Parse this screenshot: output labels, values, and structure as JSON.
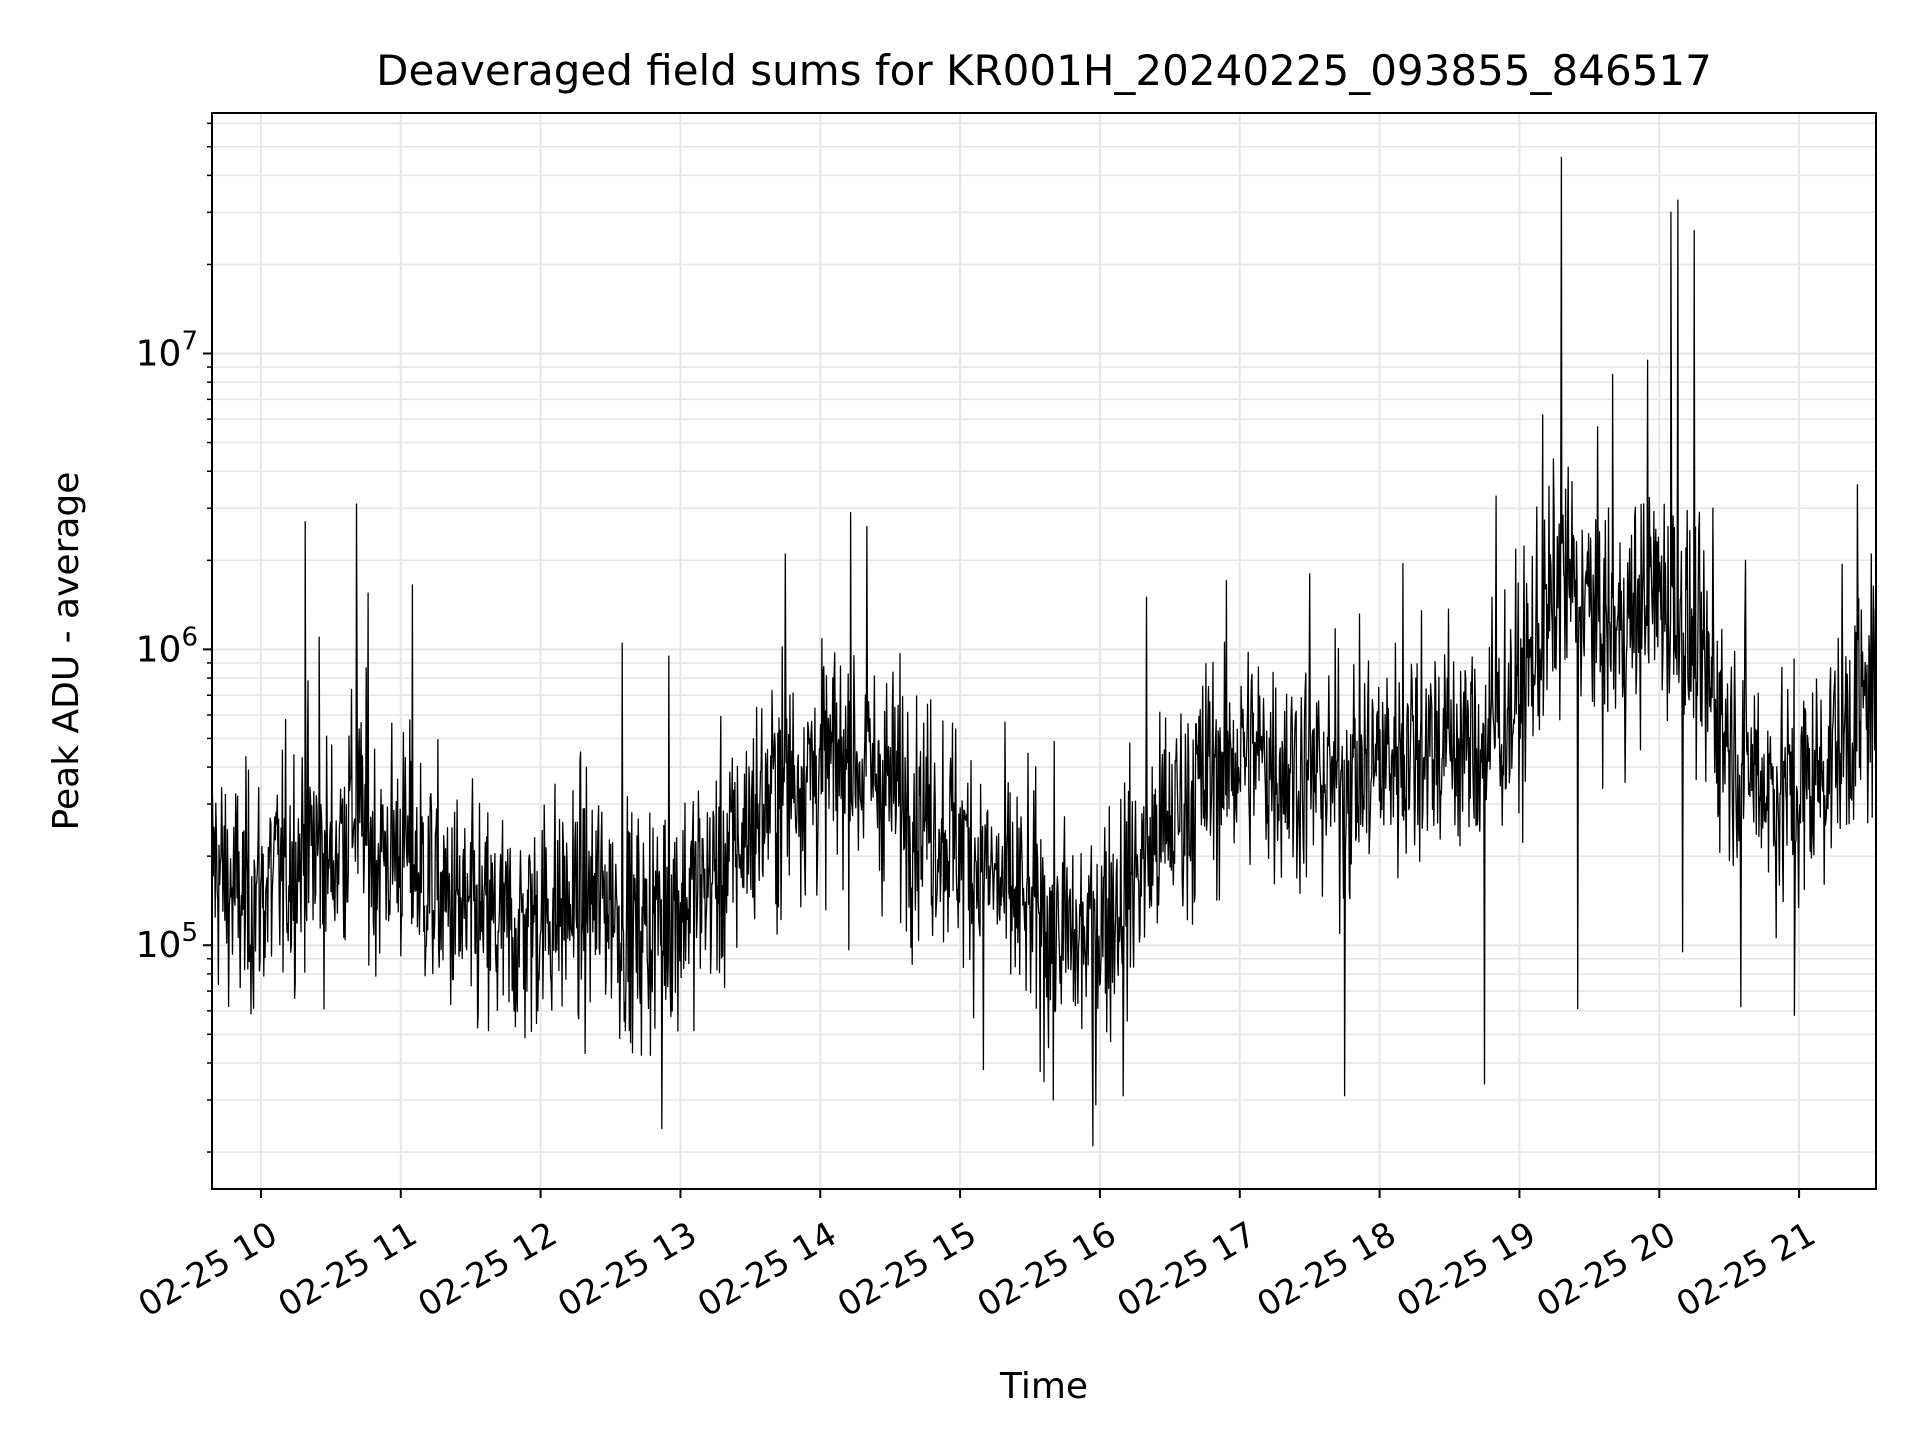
{
  "chart_data": {
    "type": "line",
    "title": "Deaveraged field sums for KR001H_20240225_093855_846517",
    "xlabel": "Time",
    "ylabel": "Peak ADU - average",
    "y_scale": "log",
    "grid": true,
    "grid_minor": true,
    "legend": "none",
    "line_color": "#000000",
    "grid_color": "#e6e6e6",
    "x_range": [
      "2024-02-25 09:39",
      "2024-02-25 21:33"
    ],
    "y_range": [
      15000,
      65000000
    ],
    "x_ticks": [
      {
        "t": "2024-02-25 10:00",
        "label": "02-25 10"
      },
      {
        "t": "2024-02-25 11:00",
        "label": "02-25 11"
      },
      {
        "t": "2024-02-25 12:00",
        "label": "02-25 12"
      },
      {
        "t": "2024-02-25 13:00",
        "label": "02-25 13"
      },
      {
        "t": "2024-02-25 14:00",
        "label": "02-25 14"
      },
      {
        "t": "2024-02-25 15:00",
        "label": "02-25 15"
      },
      {
        "t": "2024-02-25 16:00",
        "label": "02-25 16"
      },
      {
        "t": "2024-02-25 17:00",
        "label": "02-25 17"
      },
      {
        "t": "2024-02-25 18:00",
        "label": "02-25 18"
      },
      {
        "t": "2024-02-25 19:00",
        "label": "02-25 19"
      },
      {
        "t": "2024-02-25 20:00",
        "label": "02-25 20"
      },
      {
        "t": "2024-02-25 21:00",
        "label": "02-25 21"
      }
    ],
    "y_ticks": [
      {
        "value": 100000,
        "base": "10",
        "exp": "5"
      },
      {
        "value": 1000000,
        "base": "10",
        "exp": "6"
      },
      {
        "value": 10000000,
        "base": "10",
        "exp": "7"
      }
    ],
    "series": [
      {
        "points": [
          [
            "2024-02-25 09:39",
            200000
          ],
          [
            "2024-02-25 09:45",
            160000
          ],
          [
            "2024-02-25 09:52",
            140000
          ],
          [
            "2024-02-25 10:00",
            150000
          ],
          [
            "2024-02-25 10:10",
            180000
          ],
          [
            "2024-02-25 10:20",
            220000
          ],
          [
            "2024-02-25 10:30",
            190000
          ],
          [
            "2024-02-25 10:40",
            300000
          ],
          [
            "2024-02-25 10:50",
            200000
          ],
          [
            "2024-02-25 11:00",
            220000
          ],
          [
            "2024-02-25 11:10",
            170000
          ],
          [
            "2024-02-25 11:20",
            140000
          ],
          [
            "2024-02-25 11:30",
            120000
          ],
          [
            "2024-02-25 11:40",
            115000
          ],
          [
            "2024-02-25 11:50",
            110000
          ],
          [
            "2024-02-25 12:00",
            130000
          ],
          [
            "2024-02-25 12:10",
            135000
          ],
          [
            "2024-02-25 12:20",
            140000
          ],
          [
            "2024-02-25 12:30",
            145000
          ],
          [
            "2024-02-25 12:40",
            110000
          ],
          [
            "2024-02-25 12:50",
            125000
          ],
          [
            "2024-02-25 13:00",
            140000
          ],
          [
            "2024-02-25 13:10",
            160000
          ],
          [
            "2024-02-25 13:20",
            190000
          ],
          [
            "2024-02-25 13:30",
            260000
          ],
          [
            "2024-02-25 13:40",
            330000
          ],
          [
            "2024-02-25 13:50",
            380000
          ],
          [
            "2024-02-25 14:00",
            400000
          ],
          [
            "2024-02-25 14:10",
            420000
          ],
          [
            "2024-02-25 14:20",
            400000
          ],
          [
            "2024-02-25 14:30",
            350000
          ],
          [
            "2024-02-25 14:40",
            300000
          ],
          [
            "2024-02-25 14:50",
            260000
          ],
          [
            "2024-02-25 15:00",
            220000
          ],
          [
            "2024-02-25 15:10",
            180000
          ],
          [
            "2024-02-25 15:20",
            150000
          ],
          [
            "2024-02-25 15:30",
            130000
          ],
          [
            "2024-02-25 15:40",
            115000
          ],
          [
            "2024-02-25 15:50",
            100000
          ],
          [
            "2024-02-25 16:00",
            120000
          ],
          [
            "2024-02-25 16:10",
            150000
          ],
          [
            "2024-02-25 16:20",
            200000
          ],
          [
            "2024-02-25 16:30",
            260000
          ],
          [
            "2024-02-25 16:40",
            330000
          ],
          [
            "2024-02-25 16:50",
            400000
          ],
          [
            "2024-02-25 17:00",
            450000
          ],
          [
            "2024-02-25 17:10",
            430000
          ],
          [
            "2024-02-25 17:20",
            400000
          ],
          [
            "2024-02-25 17:30",
            380000
          ],
          [
            "2024-02-25 17:40",
            360000
          ],
          [
            "2024-02-25 17:50",
            380000
          ],
          [
            "2024-02-25 18:00",
            420000
          ],
          [
            "2024-02-25 18:10",
            460000
          ],
          [
            "2024-02-25 18:20",
            480000
          ],
          [
            "2024-02-25 18:30",
            500000
          ],
          [
            "2024-02-25 18:40",
            450000
          ],
          [
            "2024-02-25 18:50",
            550000
          ],
          [
            "2024-02-25 19:00",
            700000
          ],
          [
            "2024-02-25 19:10",
            1200000
          ],
          [
            "2024-02-25 19:20",
            1700000
          ],
          [
            "2024-02-25 19:30",
            1400000
          ],
          [
            "2024-02-25 19:40",
            1100000
          ],
          [
            "2024-02-25 19:50",
            1300000
          ],
          [
            "2024-02-25 20:00",
            1600000
          ],
          [
            "2024-02-25 20:10",
            1200000
          ],
          [
            "2024-02-25 20:20",
            800000
          ],
          [
            "2024-02-25 20:30",
            500000
          ],
          [
            "2024-02-25 20:40",
            400000
          ],
          [
            "2024-02-25 20:50",
            330000
          ],
          [
            "2024-02-25 21:00",
            320000
          ],
          [
            "2024-02-25 21:10",
            400000
          ],
          [
            "2024-02-25 21:20",
            550000
          ],
          [
            "2024-02-25 21:33",
            700000
          ]
        ],
        "spikes": [
          [
            "2024-02-25 10:19",
            2700000
          ],
          [
            "2024-02-25 10:25",
            1100000
          ],
          [
            "2024-02-25 10:41",
            3100000
          ],
          [
            "2024-02-25 10:46",
            1550000
          ],
          [
            "2024-02-25 11:05",
            1650000
          ],
          [
            "2024-02-25 12:35",
            1050000
          ],
          [
            "2024-02-25 12:55",
            950000
          ],
          [
            "2024-02-25 13:45",
            2100000
          ],
          [
            "2024-02-25 14:13",
            2900000
          ],
          [
            "2024-02-25 14:20",
            2600000
          ],
          [
            "2024-02-25 16:20",
            1500000
          ],
          [
            "2024-02-25 17:30",
            1800000
          ],
          [
            "2024-02-25 18:10",
            1950000
          ],
          [
            "2024-02-25 18:18",
            1350000
          ],
          [
            "2024-02-25 18:50",
            3300000
          ],
          [
            "2024-02-25 19:10",
            6200000
          ],
          [
            "2024-02-25 19:18",
            46000000
          ],
          [
            "2024-02-25 19:40",
            8500000
          ],
          [
            "2024-02-25 19:55",
            9500000
          ],
          [
            "2024-02-25 20:05",
            30000000
          ],
          [
            "2024-02-25 20:08",
            33000000
          ],
          [
            "2024-02-25 20:10",
            31500000
          ],
          [
            "2024-02-25 20:15",
            26000000
          ],
          [
            "2024-02-25 20:23",
            3000000
          ],
          [
            "2024-02-25 20:37",
            2000000
          ],
          [
            "2024-02-25 21:25",
            3600000
          ],
          [
            "2024-02-25 21:31",
            2100000
          ]
        ],
        "dips": [
          [
            "2024-02-25 12:52",
            24000
          ],
          [
            "2024-02-25 15:10",
            38000
          ],
          [
            "2024-02-25 15:40",
            30000
          ],
          [
            "2024-02-25 15:57",
            21000
          ],
          [
            "2024-02-25 16:10",
            31000
          ],
          [
            "2024-02-25 17:45",
            31000
          ],
          [
            "2024-02-25 18:45",
            34000
          ],
          [
            "2024-02-25 19:25",
            61000
          ],
          [
            "2024-02-25 20:10",
            95000
          ],
          [
            "2024-02-25 20:35",
            62000
          ],
          [
            "2024-02-25 20:58",
            58000
          ]
        ]
      }
    ]
  }
}
